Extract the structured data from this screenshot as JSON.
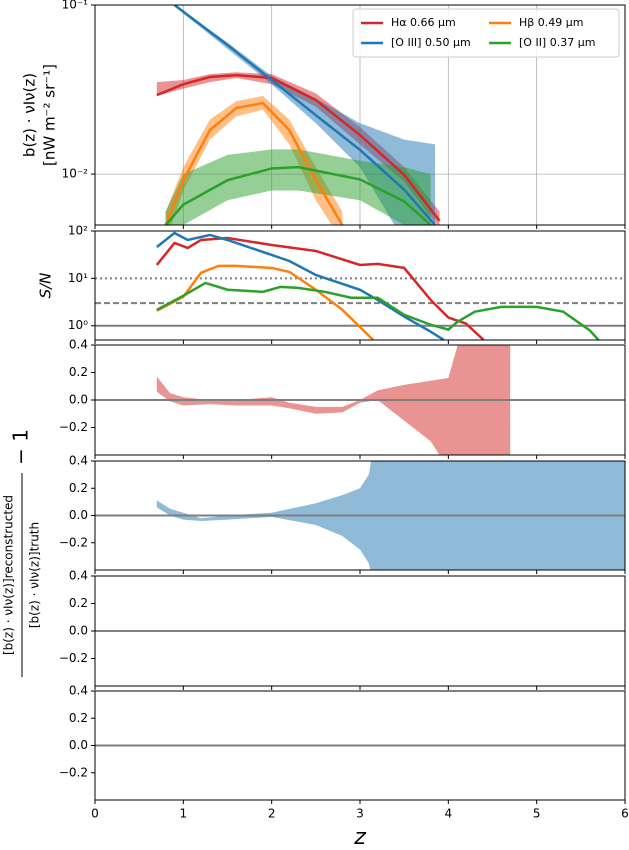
{
  "chart_data": [
    {
      "type": "line",
      "log": true,
      "grid": true,
      "legend": "upper right",
      "ylabel": [
        "b(z) · νIν(z)",
        "[nW m⁻² sr⁻¹]"
      ],
      "ylim": [
        0.005,
        0.1
      ],
      "yticks": [
        {
          "value": 0.1,
          "label": "10⁻¹"
        },
        {
          "value": 0.01,
          "label": "10⁻²"
        }
      ],
      "series": [
        {
          "name": "Hα 0.66 μm",
          "color": "#d62728",
          "x": [
            0.7,
            1.0,
            1.3,
            1.6,
            2.0,
            2.5,
            3.0,
            3.5,
            3.9
          ],
          "values": [
            0.0293,
            0.034,
            0.0375,
            0.0385,
            0.037,
            0.0274,
            0.017,
            0.0099,
            0.0053
          ],
          "upper": [
            0.035,
            0.036,
            0.039,
            0.04,
            0.039,
            0.03,
            0.019,
            0.011,
            0.006
          ],
          "lower": [
            0.029,
            0.032,
            0.035,
            0.037,
            0.034,
            0.025,
            0.015,
            0.009,
            0.0048
          ]
        },
        {
          "name": "[O III] 0.50 μm",
          "color": "#1f77b4",
          "x": [
            0.9,
            1.5,
            2.0,
            2.5,
            3.0,
            3.5,
            3.85
          ],
          "values": [
            0.1,
            0.058,
            0.036,
            0.0223,
            0.0139,
            0.0081,
            0.005
          ],
          "upper": [
            0.1,
            0.06,
            0.038,
            0.028,
            0.02,
            0.016,
            0.015
          ],
          "lower": [
            0.098,
            0.055,
            0.034,
            0.02,
            0.011,
            0.004,
            0.004
          ]
        },
        {
          "name": "Hβ 0.49 μm",
          "color": "#ff7f0e",
          "x": [
            0.8,
            1.0,
            1.3,
            1.6,
            1.9,
            2.2,
            2.5,
            2.8
          ],
          "values": [
            0.005,
            0.0092,
            0.0182,
            0.0246,
            0.0263,
            0.0182,
            0.0092,
            0.005
          ],
          "upper": [
            0.006,
            0.011,
            0.021,
            0.027,
            0.029,
            0.021,
            0.011,
            0.006
          ],
          "lower": [
            0.004,
            0.008,
            0.016,
            0.022,
            0.024,
            0.015,
            0.007,
            0.004
          ]
        },
        {
          "name": "[O II] 0.37 μm",
          "color": "#2ca02c",
          "x": [
            0.8,
            1.0,
            1.5,
            2.0,
            2.3,
            3.0,
            3.5,
            3.8
          ],
          "values": [
            0.005,
            0.0066,
            0.0092,
            0.0108,
            0.011,
            0.0093,
            0.0069,
            0.005
          ],
          "upper": [
            0.006,
            0.01,
            0.013,
            0.014,
            0.014,
            0.012,
            0.011,
            0.01
          ],
          "lower": [
            0.004,
            0.005,
            0.007,
            0.008,
            0.008,
            0.007,
            0.005,
            0.004
          ]
        }
      ]
    },
    {
      "type": "line",
      "log": true,
      "ylabel": "S/N",
      "ylim": [
        0.5,
        100
      ],
      "yticks": [
        {
          "value": 100,
          "label": "10²"
        },
        {
          "value": 10,
          "label": "10¹"
        },
        {
          "value": 1,
          "label": "10⁰"
        }
      ],
      "hlines": [
        {
          "value": 10,
          "style": "dotted"
        },
        {
          "value": 3,
          "style": "dashed"
        },
        {
          "value": 1,
          "style": "solid"
        }
      ],
      "series": [
        {
          "color": "#d62728",
          "x": [
            0.7,
            0.9,
            1.05,
            1.2,
            1.5,
            2.0,
            2.5,
            3.0,
            3.2,
            3.5,
            3.8,
            4.0,
            4.2,
            4.4
          ],
          "values": [
            19.2,
            55.9,
            43.9,
            64.6,
            71.2,
            50.7,
            37.9,
            19.2,
            20.2,
            16.6,
            3.5,
            1.49,
            1.11,
            0.5
          ]
        },
        {
          "color": "#1f77b4",
          "x": [
            0.7,
            0.9,
            1.05,
            1.3,
            1.5,
            2.0,
            2.2,
            2.5,
            3.0,
            3.2,
            3.5,
            3.8,
            3.95
          ],
          "values": [
            46,
            90.8,
            64.6,
            82.4,
            64.6,
            31.2,
            23.3,
            11.8,
            5.75,
            3.5,
            1.56,
            0.75,
            0.5
          ]
        },
        {
          "color": "#ff7f0e",
          "x": [
            0.7,
            1.0,
            1.2,
            1.4,
            1.6,
            2.0,
            2.2,
            2.5,
            2.8,
            3.15
          ],
          "values": [
            2.07,
            4.09,
            13.1,
            18.4,
            18.4,
            16.6,
            13.7,
            5.75,
            2.17,
            0.5
          ]
        },
        {
          "color": "#2ca02c",
          "x": [
            0.7,
            1.0,
            1.25,
            1.5,
            1.9,
            2.1,
            2.3,
            2.6,
            2.9,
            3.2,
            3.5,
            3.8,
            4.0,
            4.1,
            4.3,
            4.6,
            5.0,
            5.3,
            5.6,
            5.7
          ],
          "values": [
            2.17,
            4.3,
            8.0,
            5.75,
            5.2,
            6.6,
            6.3,
            5.2,
            3.9,
            3.9,
            1.7,
            1.05,
            0.83,
            1.2,
            1.98,
            2.5,
            2.5,
            1.98,
            0.8,
            0.5
          ]
        }
      ]
    },
    {
      "type": "band",
      "ylim": [
        -0.4,
        0.4
      ],
      "yticks": [
        0.4,
        0.2,
        {
          "value": 0,
          "label": "0.0"
        },
        {
          "value": -0.2,
          "label": "−0.2"
        }
      ],
      "hlines": [
        {
          "value": 0,
          "style": "solid"
        }
      ],
      "series": [
        {
          "color": "#d62728",
          "x": [
            0.7,
            0.85,
            1.0,
            1.3,
            1.6,
            2.0,
            2.2,
            2.5,
            2.8,
            3.0,
            3.2,
            3.5,
            3.8,
            4.0,
            4.15,
            4.7
          ],
          "upper": [
            0.17,
            0.05,
            0.02,
            0.0,
            0.0,
            0.02,
            -0.02,
            -0.05,
            -0.05,
            0.0,
            0.07,
            0.11,
            0.14,
            0.16,
            0.5,
            0.5
          ],
          "lower": [
            0.06,
            -0.01,
            -0.04,
            -0.03,
            -0.04,
            -0.04,
            -0.06,
            -0.1,
            -0.09,
            -0.02,
            0.0,
            -0.15,
            -0.3,
            -0.5,
            -0.5,
            -0.5
          ]
        }
      ]
    },
    {
      "type": "band",
      "ylim": [
        -0.4,
        0.4
      ],
      "yticks": [
        0.4,
        0.2,
        {
          "value": 0,
          "label": "0.0"
        },
        {
          "value": -0.2,
          "label": "−0.2"
        }
      ],
      "hlines": [
        {
          "value": 0,
          "style": "solid"
        }
      ],
      "series": [
        {
          "color": "#1f77b4",
          "x": [
            0.7,
            0.85,
            1.0,
            1.2,
            1.5,
            2.0,
            2.5,
            2.8,
            3.0,
            3.1,
            3.15,
            6
          ],
          "upper": [
            0.11,
            0.05,
            0.02,
            -0.02,
            0.0,
            0.02,
            0.09,
            0.15,
            0.2,
            0.3,
            0.5,
            0.5
          ],
          "lower": [
            0.06,
            0.0,
            -0.03,
            -0.04,
            -0.03,
            -0.01,
            -0.07,
            -0.15,
            -0.25,
            -0.35,
            -0.5,
            -0.5
          ]
        }
      ]
    },
    {
      "type": "band",
      "ylim": [
        -0.4,
        0.4
      ],
      "yticks": [
        0.4,
        0.2,
        {
          "value": 0,
          "label": "0.0"
        },
        {
          "value": -0.2,
          "label": "−0.2"
        }
      ],
      "hlines": [
        {
          "value": 0,
          "style": "solid"
        }
      ],
      "series": []
    },
    {
      "type": "band",
      "ylim": [
        -0.4,
        0.4
      ],
      "yticks": [
        0.4,
        0.2,
        {
          "value": 0,
          "label": "0.0"
        },
        {
          "value": -0.2,
          "label": "−0.2"
        }
      ],
      "hlines": [
        {
          "value": 0,
          "style": "solid"
        }
      ],
      "series": [],
      "xlabel": "z",
      "xlim": [
        0,
        6
      ],
      "xticks": [
        0,
        1,
        2,
        3,
        4,
        5,
        6
      ]
    }
  ],
  "shared_ylabel": {
    "numerator": "[b(z) · νIν(z)]reconstructed",
    "denominator": "[b(z) · νIν(z)]truth",
    "suffix": "− 1"
  }
}
